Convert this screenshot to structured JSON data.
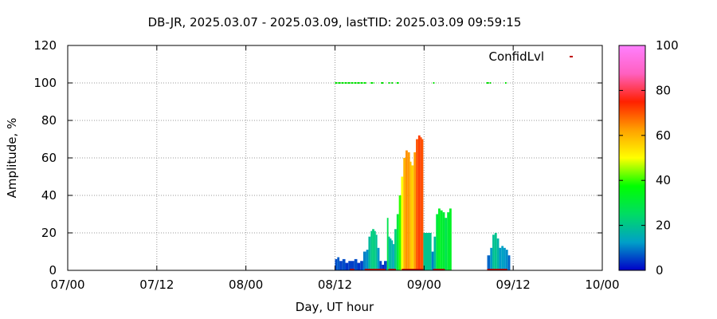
{
  "chart_data": {
    "type": "area",
    "title": "DB-JR, 2025.03.07 - 2025.03.09, lastTID: 2025.03.09 09:59:15",
    "xlabel": "Day, UT hour",
    "ylabel": "Amplitude, %",
    "x_ticks": [
      "07/00",
      "07/12",
      "08/00",
      "08/12",
      "09/00",
      "09/12",
      "10/00"
    ],
    "y_ticks": [
      "0",
      "20",
      "40",
      "60",
      "80",
      "100",
      "120"
    ],
    "xlim_hours": [
      0,
      72
    ],
    "ylim": [
      0,
      120
    ],
    "grid": true,
    "legend": {
      "label": "ConfidLvl",
      "placement": "top-right"
    },
    "colorbar": {
      "ticks": [
        "0",
        "20",
        "40",
        "60",
        "80",
        "100"
      ],
      "range": [
        0,
        100
      ],
      "palette": [
        "#0000c8",
        "#00a0c8",
        "#00dc64",
        "#00ff00",
        "#ffff00",
        "#ffa000",
        "#ff2000",
        "#ff60c0",
        "#ff80ff"
      ]
    },
    "series": [
      {
        "role": "amplitude",
        "points": [
          [
            36.0,
            6
          ],
          [
            36.3,
            7
          ],
          [
            36.6,
            5
          ],
          [
            37.0,
            6
          ],
          [
            37.4,
            4
          ],
          [
            37.8,
            5
          ],
          [
            38.2,
            5
          ],
          [
            38.6,
            6
          ],
          [
            39.0,
            4
          ],
          [
            39.4,
            5
          ],
          [
            39.8,
            10
          ],
          [
            40.2,
            11
          ],
          [
            40.5,
            18
          ],
          [
            40.8,
            21
          ],
          [
            41.0,
            22
          ],
          [
            41.3,
            21
          ],
          [
            41.5,
            19
          ],
          [
            41.7,
            12
          ],
          [
            42.0,
            5
          ],
          [
            42.3,
            3
          ],
          [
            42.6,
            5
          ],
          [
            43.0,
            28
          ],
          [
            43.2,
            18
          ],
          [
            43.4,
            17
          ],
          [
            43.6,
            16
          ],
          [
            43.8,
            14
          ],
          [
            44.0,
            22
          ],
          [
            44.3,
            30
          ],
          [
            44.6,
            40
          ],
          [
            44.9,
            50
          ],
          [
            45.2,
            60
          ],
          [
            45.5,
            64
          ],
          [
            45.8,
            63
          ],
          [
            46.1,
            58
          ],
          [
            46.3,
            56
          ],
          [
            46.6,
            63
          ],
          [
            46.9,
            70
          ],
          [
            47.2,
            72
          ],
          [
            47.5,
            71
          ],
          [
            47.7,
            70
          ],
          [
            47.9,
            20
          ],
          [
            49.0,
            10
          ],
          [
            49.3,
            18
          ],
          [
            49.6,
            30
          ],
          [
            49.9,
            33
          ],
          [
            50.2,
            32
          ],
          [
            50.5,
            31
          ],
          [
            50.8,
            28
          ],
          [
            51.1,
            31
          ],
          [
            51.4,
            33
          ],
          [
            56.5,
            8
          ],
          [
            56.9,
            12
          ],
          [
            57.2,
            19
          ],
          [
            57.5,
            20
          ],
          [
            57.8,
            17
          ],
          [
            58.1,
            12
          ],
          [
            58.4,
            13
          ],
          [
            58.7,
            12
          ],
          [
            59.0,
            11
          ],
          [
            59.3,
            8
          ]
        ]
      },
      {
        "role": "confidence-level",
        "color": "#00e000",
        "y": 100,
        "ranges": [
          [
            36.0,
            40.2
          ],
          [
            40.8,
            41.3
          ],
          [
            42.2,
            42.6
          ],
          [
            43.2,
            43.4
          ],
          [
            43.6,
            43.8
          ],
          [
            44.3,
            44.6
          ],
          [
            49.2,
            49.4
          ],
          [
            56.4,
            57.0
          ],
          [
            58.9,
            59.1
          ]
        ]
      },
      {
        "role": "baseline-flag",
        "color": "#c00000",
        "y": 0,
        "ranges": [
          [
            38.0,
            38.6
          ],
          [
            40.0,
            42.8
          ],
          [
            43.2,
            44.2
          ],
          [
            45.0,
            47.9
          ],
          [
            49.2,
            50.8
          ],
          [
            56.5,
            59.2
          ]
        ]
      }
    ]
  }
}
